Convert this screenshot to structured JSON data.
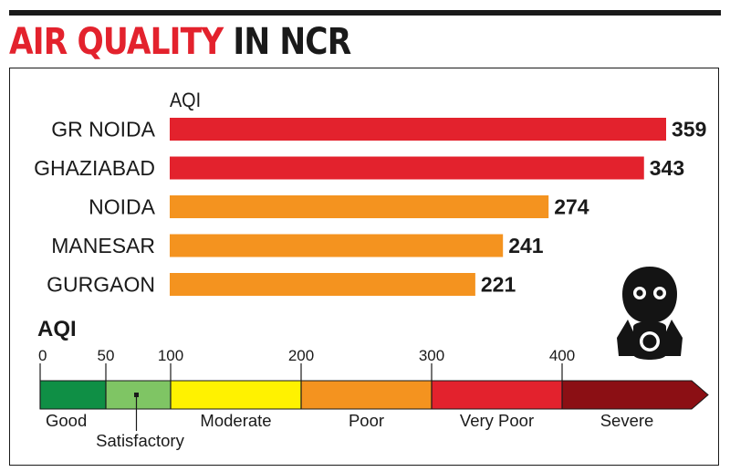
{
  "title": {
    "part1": "AIR QUALITY",
    "part2": "IN NCR"
  },
  "colors": {
    "red": "#e3222d",
    "orange": "#f4931f",
    "good": "#0f8f45",
    "satisfactory": "#7fc564",
    "moderate": "#fff200",
    "poor": "#f4931f",
    "very_poor": "#e3222d",
    "severe": "#8b0f14"
  },
  "chart_data": [
    {
      "type": "bar",
      "orientation": "horizontal",
      "title": "",
      "ylabel": "AQI",
      "categories": [
        "GR NOIDA",
        "GHAZIABAD",
        "NOIDA",
        "MANESAR",
        "GURGAON"
      ],
      "values": [
        359,
        343,
        274,
        241,
        221
      ],
      "bar_colors": [
        "#e3222d",
        "#e3222d",
        "#f4931f",
        "#f4931f",
        "#f4931f"
      ],
      "xlim": [
        0,
        359
      ],
      "grid": false,
      "data_labels": true
    },
    {
      "type": "scale",
      "title": "AQI",
      "ticks": [
        0,
        50,
        100,
        200,
        300,
        400
      ],
      "bands": [
        {
          "label": "Good",
          "from": 0,
          "to": 50,
          "color": "#0f8f45"
        },
        {
          "label": "Satisfactory",
          "from": 50,
          "to": 100,
          "color": "#7fc564"
        },
        {
          "label": "Moderate",
          "from": 100,
          "to": 200,
          "color": "#fff200"
        },
        {
          "label": "Poor",
          "from": 200,
          "to": 300,
          "color": "#f4931f"
        },
        {
          "label": "Very Poor",
          "from": 300,
          "to": 400,
          "color": "#e3222d"
        },
        {
          "label": "Severe",
          "from": 400,
          "to": 500,
          "color": "#8b0f14"
        }
      ]
    }
  ]
}
